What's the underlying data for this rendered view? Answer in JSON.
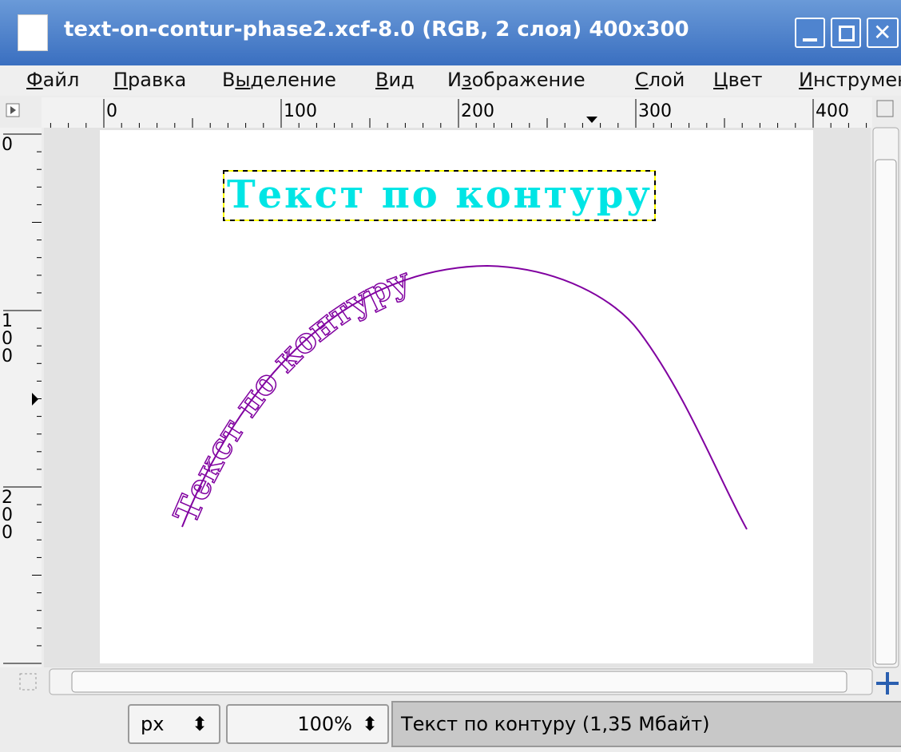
{
  "window": {
    "title": "text-on-contur-phase2.xcf-8.0 (RGB, 2 слоя) 400x300"
  },
  "menu": [
    {
      "label": "Файл",
      "mnemonic": 0
    },
    {
      "label": "Правка",
      "mnemonic": 0
    },
    {
      "label": "Выделение",
      "mnemonic": 1
    },
    {
      "label": "Вид",
      "mnemonic": 0
    },
    {
      "label": "Изображение",
      "mnemonic": 1
    },
    {
      "label": "Слой",
      "mnemonic": 0
    },
    {
      "label": "Цвет",
      "mnemonic": 0
    },
    {
      "label": "Инструменты",
      "mnemonic": 0
    }
  ],
  "rulers": {
    "horizontal": [
      0,
      100,
      200,
      300,
      400
    ],
    "vertical": [
      0,
      100,
      200
    ]
  },
  "canvas": {
    "text_layer": "Текст по контуру",
    "path_text": "Текст по контуру"
  },
  "statusbar": {
    "unit": "px",
    "zoom": "100%",
    "message": "Текст по контуру (1,35 Мбайт)"
  }
}
